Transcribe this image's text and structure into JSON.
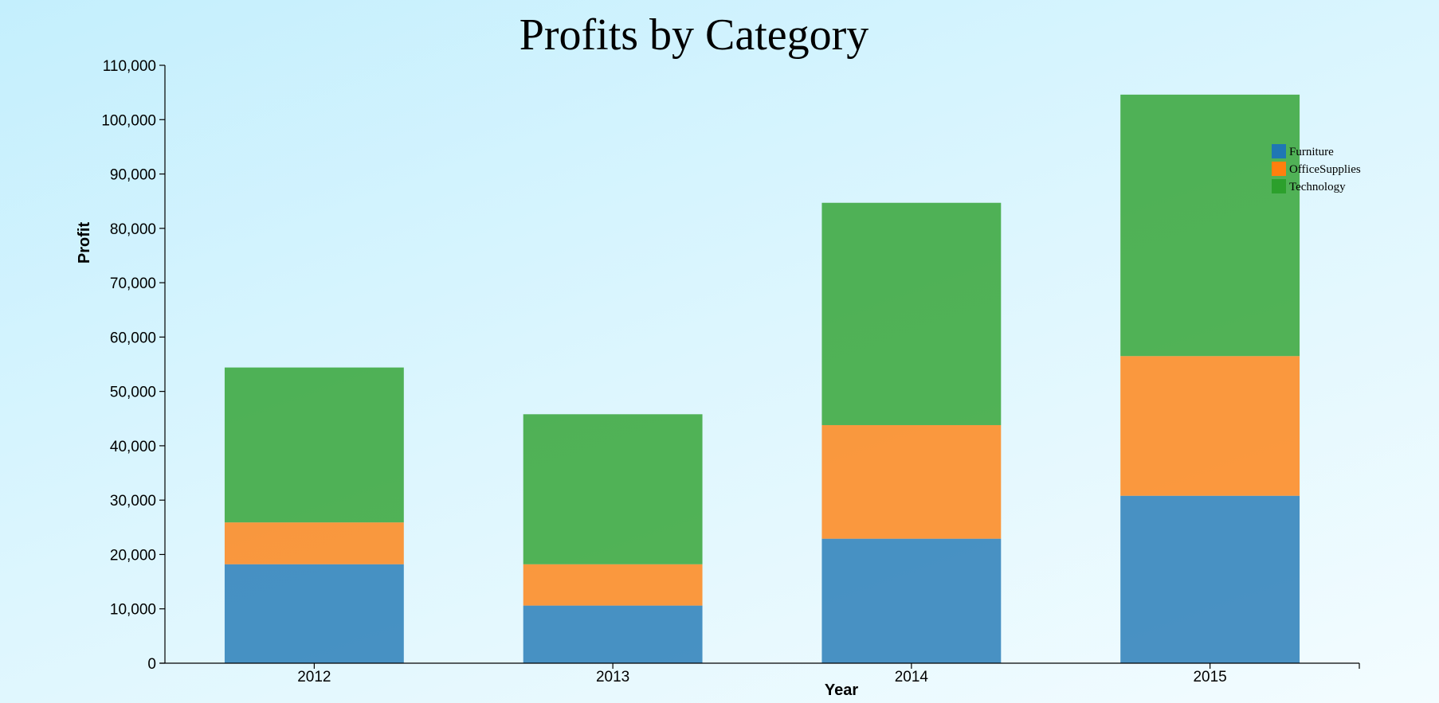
{
  "chart_data": {
    "type": "bar",
    "stacked": true,
    "title": "Profits by Category",
    "xlabel": "Year",
    "ylabel": "Profit",
    "categories": [
      "2012",
      "2013",
      "2014",
      "2015"
    ],
    "series": [
      {
        "name": "Furniture",
        "color": "#1f77b4",
        "values": [
          18200,
          10600,
          22900,
          30800
        ]
      },
      {
        "name": "OfficeSupplies",
        "color": "#ff7f0e",
        "values": [
          7700,
          7600,
          20900,
          25700
        ]
      },
      {
        "name": "Technology",
        "color": "#2ca02c",
        "values": [
          28500,
          27600,
          40900,
          48100
        ]
      }
    ],
    "ylim": [
      0,
      110000
    ],
    "yticks": [
      0,
      10000,
      20000,
      30000,
      40000,
      50000,
      60000,
      70000,
      80000,
      90000,
      100000,
      110000
    ],
    "ytick_labels": [
      "0",
      "10,000",
      "20,000",
      "30,000",
      "40,000",
      "50,000",
      "60,000",
      "70,000",
      "80,000",
      "90,000",
      "100,000",
      "110,000"
    ],
    "legend_position": "top-right",
    "grid": false
  }
}
